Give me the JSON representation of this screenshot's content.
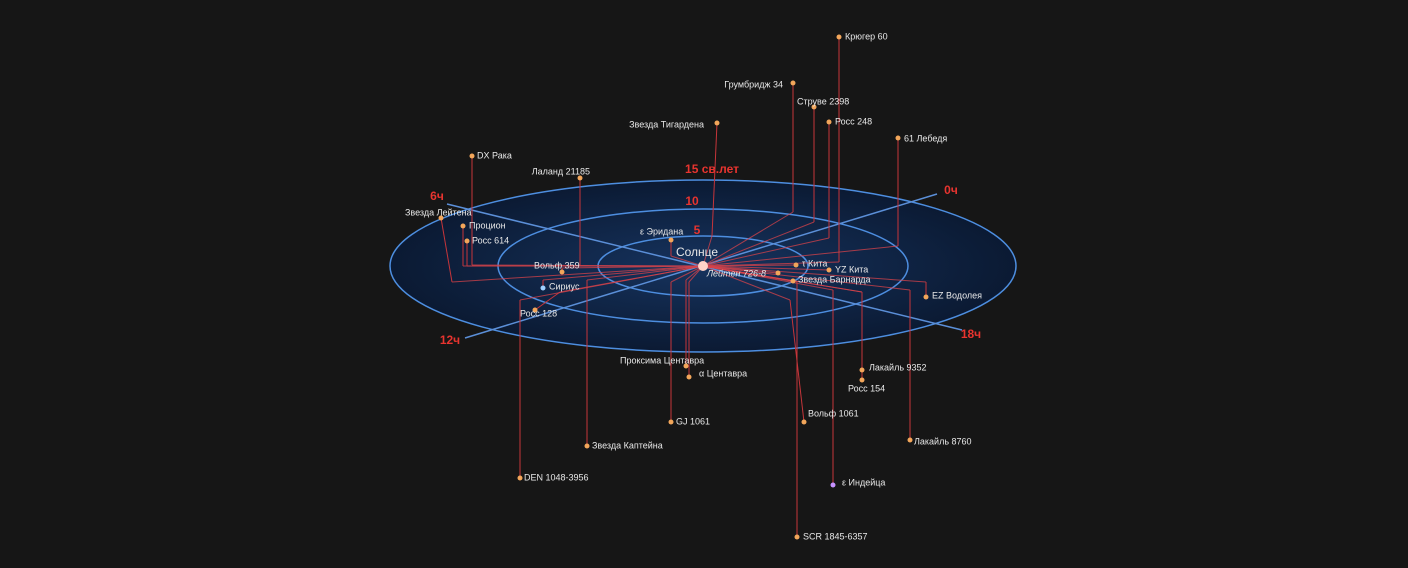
{
  "center": "Солнце",
  "rings": [
    "5",
    "10",
    "15 св.лет"
  ],
  "hours": [
    "0ч",
    "6ч",
    "12ч",
    "18ч"
  ],
  "stars": [
    {
      "label": "Крюгер 60"
    },
    {
      "label": "Грумбридж 34"
    },
    {
      "label": "Струве 2398"
    },
    {
      "label": "Росс 248"
    },
    {
      "label": "Звезда Тигардена"
    },
    {
      "label": "61 Лебедя"
    },
    {
      "label": "DX Рака"
    },
    {
      "label": "Лаланд 21185"
    },
    {
      "label": "Звезда Лейтена"
    },
    {
      "label": "Процион"
    },
    {
      "label": "Росс 614"
    },
    {
      "label": "ε Эридана"
    },
    {
      "label": "Вольф 359"
    },
    {
      "label": "Сириус"
    },
    {
      "label": "Росс 128"
    },
    {
      "label": "τ Кита"
    },
    {
      "label": "YZ Кита"
    },
    {
      "label": "Лейтен 726-8"
    },
    {
      "label": "Звезда Барнарда"
    },
    {
      "label": "EZ Водолея"
    },
    {
      "label": "Проксима Центавра"
    },
    {
      "label": "α Центавра"
    },
    {
      "label": "GJ 1061"
    },
    {
      "label": "Лакайль 9352"
    },
    {
      "label": "Росс 154"
    },
    {
      "label": "Вольф 1061"
    },
    {
      "label": "Лакайль 8760"
    },
    {
      "label": "Звезда Каптейна"
    },
    {
      "label": "DEN 1048-3956"
    },
    {
      "label": "ε Индейца"
    },
    {
      "label": "SCR 1845-6357"
    }
  ]
}
